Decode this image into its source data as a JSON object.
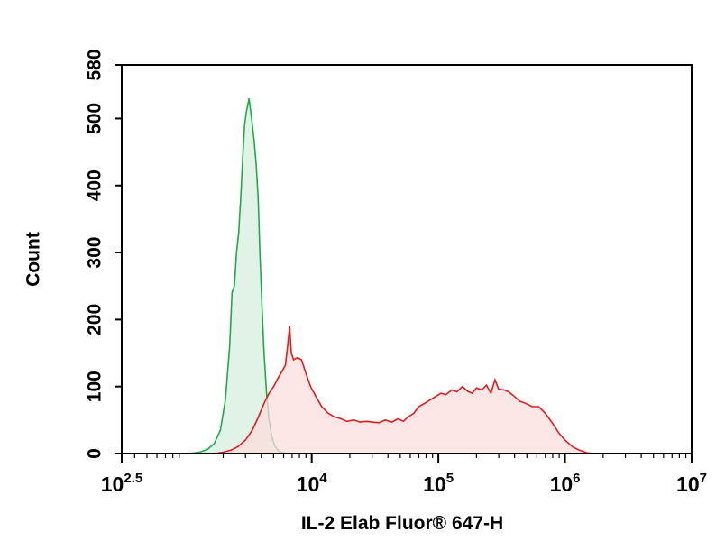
{
  "colors": {
    "control_stroke": "#1faa4a",
    "control_fill": "#dcf1e2",
    "sample_stroke": "#e41a1c",
    "sample_fill": "#fbdede",
    "axis": "#000000"
  },
  "chart_data": {
    "type": "area",
    "title": "",
    "xlabel": "IL-2 Elab Fluor® 647-H",
    "ylabel": "Count",
    "x_scale": "log10",
    "xlim": [
      316.2,
      10000000
    ],
    "ylim": [
      0,
      580
    ],
    "x_ticks": [
      {
        "value": 316.2,
        "base": "10",
        "exp": "2.5"
      },
      {
        "value": 10000,
        "base": "10",
        "exp": "4"
      },
      {
        "value": 100000,
        "base": "10",
        "exp": "5"
      },
      {
        "value": 1000000,
        "base": "10",
        "exp": "6"
      },
      {
        "value": 10000000,
        "base": "10",
        "exp": "7"
      }
    ],
    "y_ticks": [
      0,
      100,
      200,
      300,
      400,
      500,
      580
    ],
    "grid": false,
    "series": [
      {
        "role": "control",
        "color": "#1faa4a",
        "fill": "#dcf1e2",
        "x": [
          1080,
          1300,
          1500,
          1700,
          1900,
          2080,
          2250,
          2350,
          2450,
          2550,
          2650,
          2750,
          2850,
          2950,
          3050,
          3200,
          3350,
          3500,
          3650,
          3780,
          3900,
          4050,
          4200,
          4400,
          4600,
          4850,
          5100,
          5400,
          5700,
          6000,
          6400
        ],
        "y": [
          0,
          2,
          6,
          15,
          35,
          80,
          160,
          240,
          250,
          300,
          330,
          380,
          440,
          490,
          510,
          530,
          500,
          470,
          430,
          380,
          300,
          220,
          150,
          90,
          50,
          25,
          12,
          5,
          2,
          1,
          0
        ]
      },
      {
        "role": "sample",
        "color": "#e41a1c",
        "fill": "#fbdede",
        "x": [
          1700,
          2000,
          2300,
          2600,
          3000,
          3400,
          3800,
          4200,
          4600,
          5000,
          5400,
          5800,
          6200,
          6450,
          6700,
          6900,
          7200,
          7700,
          8300,
          9000,
          9800,
          10800,
          12000,
          13500,
          15000,
          17000,
          19000,
          21500,
          24000,
          27000,
          30000,
          34000,
          38000,
          43000,
          48000,
          53000,
          58000,
          64000,
          70000,
          78000,
          86000,
          95000,
          105000,
          115000,
          128000,
          140000,
          155000,
          170000,
          185000,
          200000,
          220000,
          240000,
          260000,
          280000,
          300000,
          330000,
          360000,
          400000,
          440000,
          490000,
          550000,
          620000,
          700000,
          800000,
          900000,
          1000000,
          1150000,
          1300000,
          1500000,
          1700000
        ],
        "y": [
          0,
          2,
          5,
          10,
          20,
          35,
          55,
          75,
          90,
          100,
          112,
          122,
          132,
          160,
          190,
          150,
          140,
          143,
          140,
          120,
          100,
          85,
          70,
          60,
          55,
          52,
          48,
          50,
          47,
          48,
          47,
          46,
          50,
          47,
          52,
          48,
          55,
          60,
          70,
          75,
          80,
          85,
          90,
          88,
          95,
          92,
          100,
          93,
          90,
          98,
          95,
          102,
          90,
          110,
          96,
          95,
          92,
          85,
          78,
          75,
          70,
          70,
          60,
          45,
          30,
          20,
          10,
          5,
          1,
          0
        ]
      }
    ]
  }
}
